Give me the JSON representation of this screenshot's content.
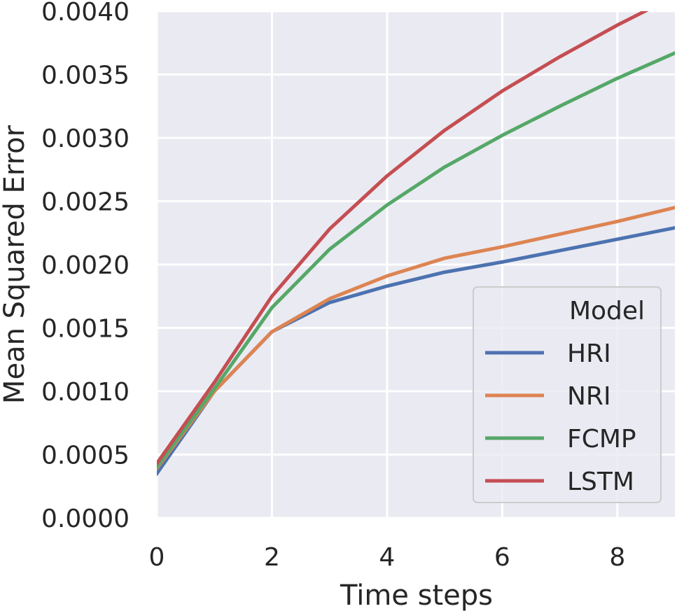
{
  "chart_data": {
    "type": "line",
    "title": "",
    "xlabel": "Time steps",
    "ylabel": "Mean Squared Error",
    "xlim": [
      0,
      9
    ],
    "ylim": [
      0,
      0.004
    ],
    "xticks": [
      0,
      2,
      4,
      6,
      8
    ],
    "xtick_labels": [
      "0",
      "2",
      "4",
      "6",
      "8"
    ],
    "yticks": [
      0,
      0.0005,
      0.001,
      0.0015,
      0.002,
      0.0025,
      0.003,
      0.0035,
      0.004
    ],
    "ytick_labels": [
      "0.0000",
      "0.0005",
      "0.0010",
      "0.0015",
      "0.0020",
      "0.0025",
      "0.0030",
      "0.0035",
      "0.0040"
    ],
    "grid": true,
    "legend": {
      "title": "Model",
      "position": "lower-right"
    },
    "x": [
      0,
      1,
      2,
      3,
      4,
      5,
      6,
      7,
      8,
      9
    ],
    "series": [
      {
        "name": "HRI",
        "color": "#4c72b0",
        "values": [
          0.00035,
          0.001,
          0.00147,
          0.0017,
          0.00183,
          0.00194,
          0.00202,
          0.00211,
          0.0022,
          0.00229
        ]
      },
      {
        "name": "NRI",
        "color": "#dd8452",
        "values": [
          0.00039,
          0.001,
          0.00147,
          0.00173,
          0.00191,
          0.00205,
          0.00214,
          0.00224,
          0.00234,
          0.00245
        ]
      },
      {
        "name": "FCMP",
        "color": "#55a868",
        "values": [
          0.0004,
          0.00102,
          0.00166,
          0.00212,
          0.00247,
          0.00277,
          0.00302,
          0.00325,
          0.00347,
          0.00367
        ]
      },
      {
        "name": "LSTM",
        "color": "#c44e52",
        "values": [
          0.00043,
          0.00107,
          0.00175,
          0.00228,
          0.0027,
          0.00306,
          0.00337,
          0.00364,
          0.00389,
          0.00412
        ]
      }
    ]
  }
}
